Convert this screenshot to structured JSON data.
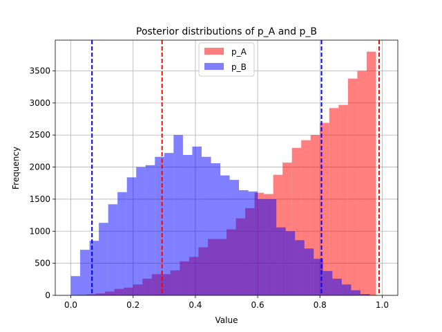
{
  "chart_data": {
    "type": "histogram",
    "title": "Posterior distributions of p_A and p_B",
    "xlabel": "Value",
    "ylabel": "Frequency",
    "xlim": [
      -0.05,
      1.05
    ],
    "ylim": [
      0,
      3980
    ],
    "xticks": [
      0.0,
      0.2,
      0.4,
      0.6,
      0.8,
      1.0
    ],
    "xtick_labels": [
      "0.0",
      "0.2",
      "0.4",
      "0.6",
      "0.8",
      "1.0"
    ],
    "yticks": [
      0,
      500,
      1000,
      1500,
      2000,
      2500,
      3000,
      3500
    ],
    "ytick_labels": [
      "0",
      "500",
      "1000",
      "1500",
      "2000",
      "2500",
      "3000",
      "3500"
    ],
    "grid": true,
    "legend_position": "top-center",
    "series": [
      {
        "name": "p_A",
        "color": "#ff0000",
        "alpha": 0.5,
        "bins": [
          {
            "x0": 0.02,
            "x1": 0.05,
            "count": 5
          },
          {
            "x0": 0.05,
            "x1": 0.08,
            "count": 15
          },
          {
            "x0": 0.08,
            "x1": 0.11,
            "count": 30
          },
          {
            "x0": 0.11,
            "x1": 0.14,
            "count": 60
          },
          {
            "x0": 0.14,
            "x1": 0.17,
            "count": 100
          },
          {
            "x0": 0.17,
            "x1": 0.2,
            "count": 120
          },
          {
            "x0": 0.2,
            "x1": 0.23,
            "count": 170
          },
          {
            "x0": 0.23,
            "x1": 0.26,
            "count": 260
          },
          {
            "x0": 0.26,
            "x1": 0.29,
            "count": 330
          },
          {
            "x0": 0.29,
            "x1": 0.32,
            "count": 330
          },
          {
            "x0": 0.32,
            "x1": 0.35,
            "count": 390
          },
          {
            "x0": 0.35,
            "x1": 0.38,
            "count": 530
          },
          {
            "x0": 0.38,
            "x1": 0.41,
            "count": 600
          },
          {
            "x0": 0.41,
            "x1": 0.44,
            "count": 750
          },
          {
            "x0": 0.44,
            "x1": 0.47,
            "count": 880
          },
          {
            "x0": 0.47,
            "x1": 0.5,
            "count": 880
          },
          {
            "x0": 0.5,
            "x1": 0.53,
            "count": 1030
          },
          {
            "x0": 0.53,
            "x1": 0.56,
            "count": 1200
          },
          {
            "x0": 0.56,
            "x1": 0.59,
            "count": 1360
          },
          {
            "x0": 0.59,
            "x1": 0.62,
            "count": 1600
          },
          {
            "x0": 0.62,
            "x1": 0.65,
            "count": 1580
          },
          {
            "x0": 0.65,
            "x1": 0.68,
            "count": 1880
          },
          {
            "x0": 0.68,
            "x1": 0.71,
            "count": 2070
          },
          {
            "x0": 0.71,
            "x1": 0.74,
            "count": 2300
          },
          {
            "x0": 0.74,
            "x1": 0.77,
            "count": 2420
          },
          {
            "x0": 0.77,
            "x1": 0.8,
            "count": 2500
          },
          {
            "x0": 0.8,
            "x1": 0.83,
            "count": 2690
          },
          {
            "x0": 0.83,
            "x1": 0.86,
            "count": 2920
          },
          {
            "x0": 0.86,
            "x1": 0.89,
            "count": 2970
          },
          {
            "x0": 0.89,
            "x1": 0.92,
            "count": 3380
          },
          {
            "x0": 0.92,
            "x1": 0.95,
            "count": 3500
          },
          {
            "x0": 0.95,
            "x1": 0.98,
            "count": 3800
          }
        ],
        "reference_lines": [
          0.293,
          0.99
        ]
      },
      {
        "name": "p_B",
        "color": "#0000ff",
        "alpha": 0.5,
        "bins": [
          {
            "x0": 0.0,
            "x1": 0.03,
            "count": 300
          },
          {
            "x0": 0.03,
            "x1": 0.06,
            "count": 710
          },
          {
            "x0": 0.06,
            "x1": 0.09,
            "count": 850
          },
          {
            "x0": 0.09,
            "x1": 0.12,
            "count": 1130
          },
          {
            "x0": 0.12,
            "x1": 0.15,
            "count": 1420
          },
          {
            "x0": 0.15,
            "x1": 0.18,
            "count": 1610
          },
          {
            "x0": 0.18,
            "x1": 0.21,
            "count": 1840
          },
          {
            "x0": 0.21,
            "x1": 0.24,
            "count": 2000
          },
          {
            "x0": 0.24,
            "x1": 0.27,
            "count": 2030
          },
          {
            "x0": 0.27,
            "x1": 0.3,
            "count": 2160
          },
          {
            "x0": 0.3,
            "x1": 0.33,
            "count": 2220
          },
          {
            "x0": 0.33,
            "x1": 0.36,
            "count": 2500
          },
          {
            "x0": 0.36,
            "x1": 0.39,
            "count": 2190
          },
          {
            "x0": 0.39,
            "x1": 0.42,
            "count": 2320
          },
          {
            "x0": 0.42,
            "x1": 0.45,
            "count": 2160
          },
          {
            "x0": 0.45,
            "x1": 0.48,
            "count": 2060
          },
          {
            "x0": 0.48,
            "x1": 0.51,
            "count": 1870
          },
          {
            "x0": 0.51,
            "x1": 0.54,
            "count": 1800
          },
          {
            "x0": 0.54,
            "x1": 0.57,
            "count": 1640
          },
          {
            "x0": 0.57,
            "x1": 0.6,
            "count": 1620
          },
          {
            "x0": 0.6,
            "x1": 0.63,
            "count": 1500
          },
          {
            "x0": 0.63,
            "x1": 0.66,
            "count": 1500
          },
          {
            "x0": 0.66,
            "x1": 0.69,
            "count": 1060
          },
          {
            "x0": 0.69,
            "x1": 0.72,
            "count": 1000
          },
          {
            "x0": 0.72,
            "x1": 0.75,
            "count": 860
          },
          {
            "x0": 0.75,
            "x1": 0.78,
            "count": 730
          },
          {
            "x0": 0.78,
            "x1": 0.81,
            "count": 570
          },
          {
            "x0": 0.81,
            "x1": 0.84,
            "count": 380
          },
          {
            "x0": 0.84,
            "x1": 0.87,
            "count": 260
          },
          {
            "x0": 0.87,
            "x1": 0.9,
            "count": 170
          },
          {
            "x0": 0.9,
            "x1": 0.93,
            "count": 80
          },
          {
            "x0": 0.93,
            "x1": 0.96,
            "count": 20
          }
        ],
        "reference_lines": [
          0.068,
          0.805
        ]
      }
    ]
  }
}
